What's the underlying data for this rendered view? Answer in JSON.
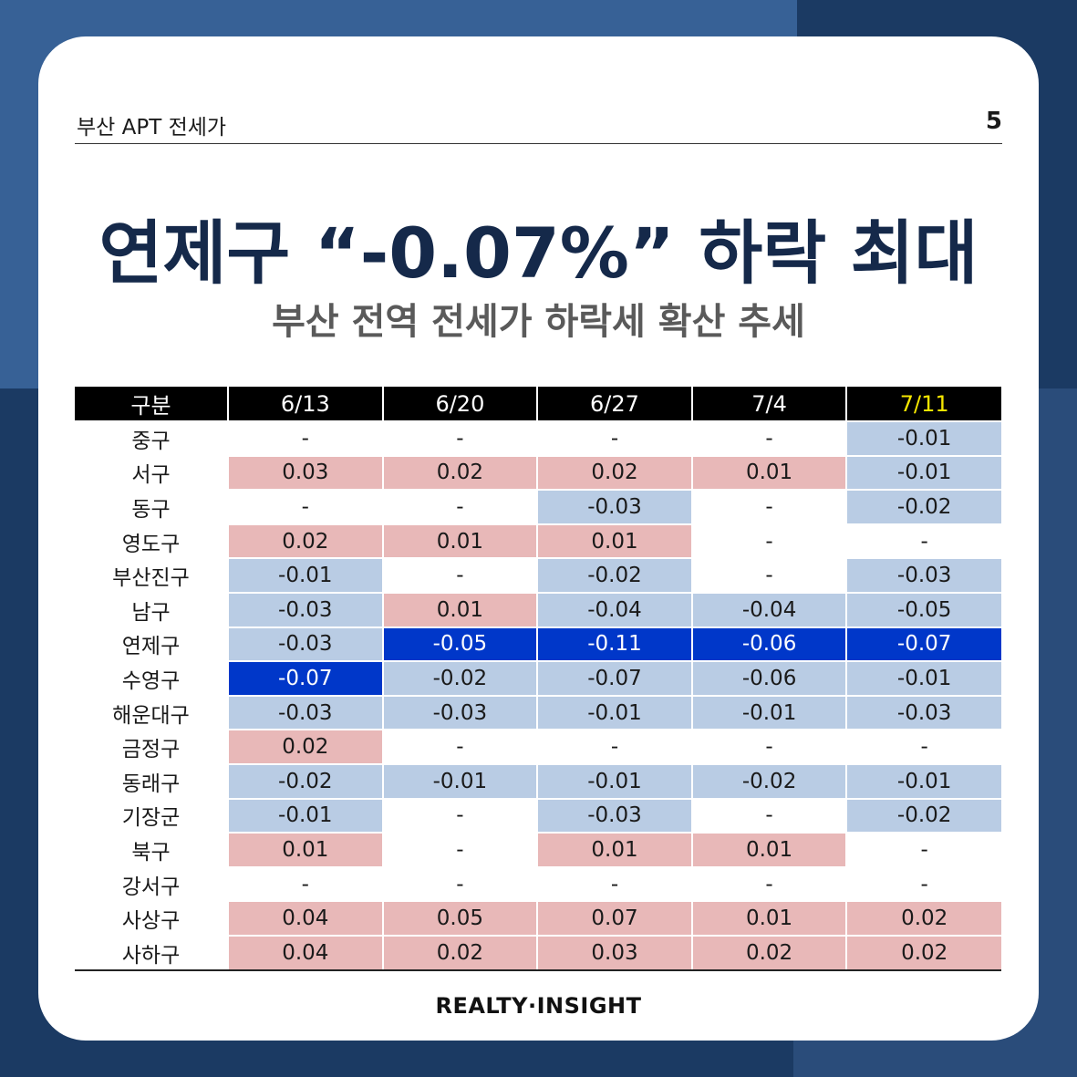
{
  "header": {
    "section": "부산 APT 전세가",
    "page_number": "5"
  },
  "title": "연제구 “-0.07%” 하락 최대",
  "subtitle": "부산 전역 전세가 하락세 확산 추세",
  "table": {
    "columns": [
      "구분",
      "6/13",
      "6/20",
      "6/27",
      "7/4",
      "7/11"
    ],
    "highlight_column": "7/11",
    "rows": [
      {
        "label": "중구",
        "values": [
          "-",
          "-",
          "-",
          "-",
          "-0.01"
        ]
      },
      {
        "label": "서구",
        "values": [
          "0.03",
          "0.02",
          "0.02",
          "0.01",
          "-0.01"
        ]
      },
      {
        "label": "동구",
        "values": [
          "-",
          "-",
          "-0.03",
          "-",
          "-0.02"
        ]
      },
      {
        "label": "영도구",
        "values": [
          "0.02",
          "0.01",
          "0.01",
          "-",
          "-"
        ]
      },
      {
        "label": "부산진구",
        "values": [
          "-0.01",
          "-",
          "-0.02",
          "-",
          "-0.03"
        ]
      },
      {
        "label": "남구",
        "values": [
          "-0.03",
          "0.01",
          "-0.04",
          "-0.04",
          "-0.05"
        ]
      },
      {
        "label": "연제구",
        "values": [
          "-0.03",
          "-0.05",
          "-0.11",
          "-0.06",
          "-0.07"
        ]
      },
      {
        "label": "수영구",
        "values": [
          "-0.07",
          "-0.02",
          "-0.07",
          "-0.06",
          "-0.01"
        ]
      },
      {
        "label": "해운대구",
        "values": [
          "-0.03",
          "-0.03",
          "-0.01",
          "-0.01",
          "-0.03"
        ]
      },
      {
        "label": "금정구",
        "values": [
          "0.02",
          "-",
          "-",
          "-",
          "-"
        ]
      },
      {
        "label": "동래구",
        "values": [
          "-0.02",
          "-0.01",
          "-0.01",
          "-0.02",
          "-0.01"
        ]
      },
      {
        "label": "기장군",
        "values": [
          "-0.01",
          "-",
          "-0.03",
          "-",
          "-0.02"
        ]
      },
      {
        "label": "북구",
        "values": [
          "0.01",
          "-",
          "0.01",
          "0.01",
          "-"
        ]
      },
      {
        "label": "강서구",
        "values": [
          "-",
          "-",
          "-",
          "-",
          "-"
        ]
      },
      {
        "label": "사상구",
        "values": [
          "0.04",
          "0.05",
          "0.07",
          "0.01",
          "0.02"
        ]
      },
      {
        "label": "사하구",
        "values": [
          "0.04",
          "0.02",
          "0.03",
          "0.02",
          "0.02"
        ]
      }
    ],
    "strong_cells": [
      [
        6,
        1
      ],
      [
        6,
        2
      ],
      [
        6,
        3
      ],
      [
        6,
        4
      ],
      [
        7,
        0
      ]
    ],
    "colors": {
      "negative": "#b9cce4",
      "positive": "#e8b8b8",
      "strong": "#0037c9",
      "header_bg": "#000000",
      "highlight_text": "#f5e600"
    }
  },
  "footer": {
    "brand": "REALTY·INSIGHT"
  }
}
